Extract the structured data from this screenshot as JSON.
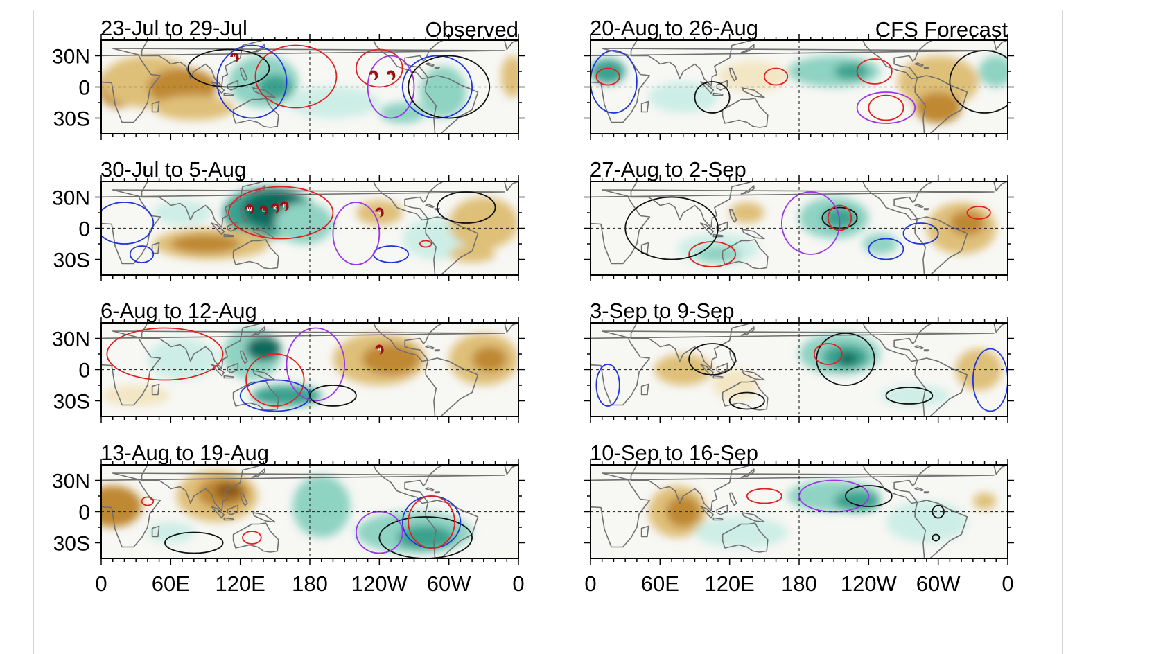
{
  "figure": {
    "left_tag": "Observed",
    "right_tag": "CFS Forecast",
    "lat_labels": [
      "30N",
      "0",
      "30S"
    ],
    "lon_labels": [
      "0",
      "60E",
      "120E",
      "180",
      "120W",
      "60W",
      "0"
    ],
    "colors": {
      "dry_dark": "#8c5a1c",
      "dry_mid": "#bf8833",
      "dry_light": "#dfc079",
      "dry_pale": "#f3e6c4",
      "wet_pale": "#cdeee6",
      "wet_light": "#8fd3c3",
      "wet_mid": "#3aa28f",
      "wet_dark": "#0e6a5c",
      "wet_deep": "#053f36",
      "contour_red": "#e02020",
      "contour_blue": "#1f35d8",
      "contour_black": "#111111",
      "contour_purple": "#9b35e6",
      "coast": "#707070"
    }
  },
  "panels": [
    {
      "title": "23-Jul to 29-Jul",
      "storms": [
        "N",
        "E",
        "F"
      ],
      "shading": [
        {
          "lon": 15,
          "lat": 0,
          "rx": 18,
          "ry": 20,
          "c": "dry_mid"
        },
        {
          "lon": 40,
          "lat": 5,
          "rx": 40,
          "ry": 25,
          "c": "dry_light"
        },
        {
          "lon": 70,
          "lat": 0,
          "rx": 30,
          "ry": 18,
          "c": "dry_mid"
        },
        {
          "lon": 80,
          "lat": -20,
          "rx": 35,
          "ry": 12,
          "c": "dry_light"
        },
        {
          "lon": 140,
          "lat": 5,
          "rx": 30,
          "ry": 25,
          "c": "wet_light"
        },
        {
          "lon": 150,
          "lat": 0,
          "rx": 15,
          "ry": 12,
          "c": "wet_mid"
        },
        {
          "lon": 200,
          "lat": -15,
          "rx": 40,
          "ry": 15,
          "c": "wet_pale"
        },
        {
          "lon": 260,
          "lat": -25,
          "rx": 20,
          "ry": 10,
          "c": "wet_light"
        },
        {
          "lon": 295,
          "lat": -5,
          "rx": 20,
          "ry": 25,
          "c": "wet_light"
        },
        {
          "lon": 355,
          "lat": 10,
          "rx": 10,
          "ry": 20,
          "c": "dry_light"
        }
      ],
      "contours": [
        {
          "lon": 110,
          "lat": 18,
          "rx": 35,
          "ry": 18,
          "c": "contour_black"
        },
        {
          "lon": 130,
          "lat": 5,
          "rx": 30,
          "ry": 35,
          "c": "contour_blue"
        },
        {
          "lon": 168,
          "lat": 10,
          "rx": 35,
          "ry": 30,
          "c": "contour_red"
        },
        {
          "lon": 240,
          "lat": 18,
          "rx": 20,
          "ry": 18,
          "c": "contour_red"
        },
        {
          "lon": 290,
          "lat": 0,
          "rx": 30,
          "ry": 30,
          "c": "contour_blue"
        },
        {
          "lon": 300,
          "lat": 0,
          "rx": 35,
          "ry": 30,
          "c": "contour_black"
        },
        {
          "lon": 250,
          "lat": 0,
          "rx": 20,
          "ry": 30,
          "c": "contour_purple"
        }
      ]
    },
    {
      "title": "30-Jul to 5-Aug",
      "storms": [
        "W",
        "L",
        "K",
        "F",
        "G"
      ],
      "shading": [
        {
          "lon": 145,
          "lat": 15,
          "rx": 40,
          "ry": 25,
          "c": "wet_mid"
        },
        {
          "lon": 150,
          "lat": 18,
          "rx": 28,
          "ry": 18,
          "c": "wet_dark"
        },
        {
          "lon": 175,
          "lat": 5,
          "rx": 25,
          "ry": 20,
          "c": "wet_light"
        },
        {
          "lon": 95,
          "lat": -15,
          "rx": 50,
          "ry": 15,
          "c": "dry_light"
        },
        {
          "lon": 90,
          "lat": -15,
          "rx": 30,
          "ry": 9,
          "c": "dry_mid"
        },
        {
          "lon": 70,
          "lat": 15,
          "rx": 25,
          "ry": 12,
          "c": "wet_pale"
        },
        {
          "lon": 240,
          "lat": 15,
          "rx": 20,
          "ry": 12,
          "c": "dry_light"
        },
        {
          "lon": 290,
          "lat": -10,
          "rx": 30,
          "ry": 20,
          "c": "wet_pale"
        },
        {
          "lon": 330,
          "lat": 5,
          "rx": 30,
          "ry": 25,
          "c": "dry_light"
        },
        {
          "lon": 320,
          "lat": -25,
          "rx": 20,
          "ry": 8,
          "c": "dry_light"
        }
      ],
      "contours": [
        {
          "lon": 155,
          "lat": 15,
          "rx": 45,
          "ry": 25,
          "c": "contour_red"
        },
        {
          "lon": 20,
          "lat": 5,
          "rx": 25,
          "ry": 20,
          "c": "contour_blue"
        },
        {
          "lon": 35,
          "lat": -25,
          "rx": 10,
          "ry": 8,
          "c": "contour_blue"
        },
        {
          "lon": 250,
          "lat": -25,
          "rx": 15,
          "ry": 8,
          "c": "contour_blue"
        },
        {
          "lon": 220,
          "lat": -5,
          "rx": 20,
          "ry": 30,
          "c": "contour_purple"
        },
        {
          "lon": 315,
          "lat": 20,
          "rx": 25,
          "ry": 15,
          "c": "contour_black"
        },
        {
          "lon": 280,
          "lat": -15,
          "rx": 5,
          "ry": 3,
          "c": "contour_red"
        }
      ]
    },
    {
      "title": "6-Aug to 12-Aug",
      "storms": [
        "H"
      ],
      "shading": [
        {
          "lon": 130,
          "lat": 15,
          "rx": 25,
          "ry": 25,
          "c": "wet_light"
        },
        {
          "lon": 140,
          "lat": 20,
          "rx": 15,
          "ry": 12,
          "c": "wet_dark"
        },
        {
          "lon": 160,
          "lat": -25,
          "rx": 30,
          "ry": 10,
          "c": "wet_mid"
        },
        {
          "lon": 70,
          "lat": 10,
          "rx": 30,
          "ry": 20,
          "c": "wet_pale"
        },
        {
          "lon": 240,
          "lat": 10,
          "rx": 40,
          "ry": 25,
          "c": "dry_light"
        },
        {
          "lon": 250,
          "lat": 10,
          "rx": 25,
          "ry": 15,
          "c": "dry_mid"
        },
        {
          "lon": 330,
          "lat": 10,
          "rx": 30,
          "ry": 25,
          "c": "dry_light"
        },
        {
          "lon": 335,
          "lat": 10,
          "rx": 15,
          "ry": 12,
          "c": "dry_mid"
        },
        {
          "lon": 30,
          "lat": -25,
          "rx": 30,
          "ry": 10,
          "c": "dry_pale"
        }
      ],
      "contours": [
        {
          "lon": 55,
          "lat": 15,
          "rx": 50,
          "ry": 25,
          "c": "contour_red"
        },
        {
          "lon": 150,
          "lat": -25,
          "rx": 30,
          "ry": 15,
          "c": "contour_blue"
        },
        {
          "lon": 150,
          "lat": -10,
          "rx": 25,
          "ry": 25,
          "c": "contour_red"
        },
        {
          "lon": 185,
          "lat": 5,
          "rx": 25,
          "ry": 35,
          "c": "contour_purple"
        },
        {
          "lon": 200,
          "lat": -25,
          "rx": 20,
          "ry": 10,
          "c": "contour_black"
        }
      ]
    },
    {
      "title": "13-Aug to 19-Aug",
      "storms": [],
      "shading": [
        {
          "lon": 10,
          "lat": 5,
          "rx": 25,
          "ry": 20,
          "c": "dry_mid"
        },
        {
          "lon": 100,
          "lat": 15,
          "rx": 35,
          "ry": 25,
          "c": "dry_light"
        },
        {
          "lon": 105,
          "lat": 18,
          "rx": 22,
          "ry": 15,
          "c": "dry_mid"
        },
        {
          "lon": 110,
          "lat": 20,
          "rx": 12,
          "ry": 8,
          "c": "dry_dark"
        },
        {
          "lon": 190,
          "lat": 5,
          "rx": 25,
          "ry": 30,
          "c": "wet_light"
        },
        {
          "lon": 270,
          "lat": -20,
          "rx": 50,
          "ry": 20,
          "c": "wet_light"
        },
        {
          "lon": 280,
          "lat": -25,
          "rx": 25,
          "ry": 12,
          "c": "wet_mid"
        },
        {
          "lon": 60,
          "lat": -20,
          "rx": 20,
          "ry": 10,
          "c": "wet_pale"
        }
      ],
      "contours": [
        {
          "lon": 40,
          "lat": 10,
          "rx": 5,
          "ry": 4,
          "c": "contour_red"
        },
        {
          "lon": 80,
          "lat": -30,
          "rx": 25,
          "ry": 10,
          "c": "contour_black"
        },
        {
          "lon": 130,
          "lat": -25,
          "rx": 8,
          "ry": 6,
          "c": "contour_red"
        },
        {
          "lon": 280,
          "lat": -25,
          "rx": 40,
          "ry": 20,
          "c": "contour_black"
        },
        {
          "lon": 285,
          "lat": -10,
          "rx": 25,
          "ry": 25,
          "c": "contour_blue"
        },
        {
          "lon": 285,
          "lat": -10,
          "rx": 20,
          "ry": 25,
          "c": "contour_red"
        },
        {
          "lon": 240,
          "lat": -20,
          "rx": 20,
          "ry": 20,
          "c": "contour_purple"
        }
      ]
    },
    {
      "title": "20-Aug to 26-Aug",
      "storms": [],
      "shading": [
        {
          "lon": 15,
          "lat": 15,
          "rx": 15,
          "ry": 12,
          "c": "wet_mid"
        },
        {
          "lon": 80,
          "lat": -10,
          "rx": 30,
          "ry": 15,
          "c": "wet_pale"
        },
        {
          "lon": 210,
          "lat": 15,
          "rx": 40,
          "ry": 15,
          "c": "wet_light"
        },
        {
          "lon": 225,
          "lat": 15,
          "rx": 15,
          "ry": 8,
          "c": "wet_mid"
        },
        {
          "lon": 300,
          "lat": 5,
          "rx": 35,
          "ry": 25,
          "c": "dry_light"
        },
        {
          "lon": 300,
          "lat": -20,
          "rx": 20,
          "ry": 15,
          "c": "dry_mid"
        },
        {
          "lon": 140,
          "lat": 10,
          "rx": 30,
          "ry": 15,
          "c": "dry_pale"
        },
        {
          "lon": 350,
          "lat": 15,
          "rx": 15,
          "ry": 15,
          "c": "wet_light"
        }
      ],
      "contours": [
        {
          "lon": 15,
          "lat": 10,
          "rx": 10,
          "ry": 8,
          "c": "contour_red"
        },
        {
          "lon": 20,
          "lat": 5,
          "rx": 20,
          "ry": 30,
          "c": "contour_blue"
        },
        {
          "lon": 105,
          "lat": -10,
          "rx": 15,
          "ry": 15,
          "c": "contour_black"
        },
        {
          "lon": 160,
          "lat": 10,
          "rx": 10,
          "ry": 8,
          "c": "contour_red"
        },
        {
          "lon": 245,
          "lat": 15,
          "rx": 15,
          "ry": 12,
          "c": "contour_red"
        },
        {
          "lon": 255,
          "lat": -20,
          "rx": 15,
          "ry": 12,
          "c": "contour_red"
        },
        {
          "lon": 255,
          "lat": -20,
          "rx": 25,
          "ry": 15,
          "c": "contour_purple"
        },
        {
          "lon": 340,
          "lat": 5,
          "rx": 30,
          "ry": 30,
          "c": "contour_black"
        }
      ]
    },
    {
      "title": "27-Aug to 2-Sep",
      "storms": [],
      "shading": [
        {
          "lon": 210,
          "lat": 10,
          "rx": 30,
          "ry": 20,
          "c": "wet_light"
        },
        {
          "lon": 215,
          "lat": 10,
          "rx": 15,
          "ry": 10,
          "c": "wet_mid"
        },
        {
          "lon": 110,
          "lat": -20,
          "rx": 35,
          "ry": 15,
          "c": "wet_pale"
        },
        {
          "lon": 110,
          "lat": -25,
          "rx": 20,
          "ry": 8,
          "c": "wet_light"
        },
        {
          "lon": 320,
          "lat": 0,
          "rx": 30,
          "ry": 25,
          "c": "dry_light"
        },
        {
          "lon": 325,
          "lat": 5,
          "rx": 15,
          "ry": 12,
          "c": "dry_mid"
        },
        {
          "lon": 135,
          "lat": 15,
          "rx": 15,
          "ry": 10,
          "c": "dry_light"
        },
        {
          "lon": 250,
          "lat": -15,
          "rx": 15,
          "ry": 10,
          "c": "wet_light"
        }
      ],
      "contours": [
        {
          "lon": 215,
          "lat": 10,
          "rx": 15,
          "ry": 10,
          "c": "contour_black"
        },
        {
          "lon": 215,
          "lat": 10,
          "rx": 10,
          "ry": 12,
          "c": "contour_red"
        },
        {
          "lon": 105,
          "lat": -25,
          "rx": 20,
          "ry": 12,
          "c": "contour_red"
        },
        {
          "lon": 255,
          "lat": -20,
          "rx": 15,
          "ry": 10,
          "c": "contour_blue"
        },
        {
          "lon": 285,
          "lat": -5,
          "rx": 15,
          "ry": 10,
          "c": "contour_blue"
        },
        {
          "lon": 335,
          "lat": 15,
          "rx": 10,
          "ry": 6,
          "c": "contour_red"
        },
        {
          "lon": 190,
          "lat": 5,
          "rx": 25,
          "ry": 30,
          "c": "contour_purple"
        },
        {
          "lon": 70,
          "lat": 0,
          "rx": 40,
          "ry": 30,
          "c": "contour_black"
        }
      ]
    },
    {
      "title": "3-Sep to 9-Sep",
      "storms": [],
      "shading": [
        {
          "lon": 215,
          "lat": 15,
          "rx": 35,
          "ry": 20,
          "c": "wet_light"
        },
        {
          "lon": 220,
          "lat": 12,
          "rx": 20,
          "ry": 12,
          "c": "wet_mid"
        },
        {
          "lon": 222,
          "lat": 10,
          "rx": 8,
          "ry": 6,
          "c": "wet_dark"
        },
        {
          "lon": 80,
          "lat": 0,
          "rx": 25,
          "ry": 15,
          "c": "dry_light"
        },
        {
          "lon": 125,
          "lat": -15,
          "rx": 20,
          "ry": 15,
          "c": "dry_pale"
        },
        {
          "lon": 335,
          "lat": 0,
          "rx": 20,
          "ry": 20,
          "c": "dry_light"
        },
        {
          "lon": 280,
          "lat": -25,
          "rx": 30,
          "ry": 10,
          "c": "wet_pale"
        }
      ],
      "contours": [
        {
          "lon": 220,
          "lat": 10,
          "rx": 25,
          "ry": 25,
          "c": "contour_black"
        },
        {
          "lon": 205,
          "lat": 15,
          "rx": 12,
          "ry": 10,
          "c": "contour_red"
        },
        {
          "lon": 105,
          "lat": 10,
          "rx": 20,
          "ry": 15,
          "c": "contour_black"
        },
        {
          "lon": 135,
          "lat": -30,
          "rx": 15,
          "ry": 8,
          "c": "contour_black"
        },
        {
          "lon": 275,
          "lat": -25,
          "rx": 20,
          "ry": 8,
          "c": "contour_black"
        },
        {
          "lon": 345,
          "lat": -10,
          "rx": 15,
          "ry": 30,
          "c": "contour_blue"
        },
        {
          "lon": 15,
          "lat": -15,
          "rx": 10,
          "ry": 20,
          "c": "contour_blue"
        }
      ]
    },
    {
      "title": "10-Sep to 16-Sep",
      "storms": [],
      "shading": [
        {
          "lon": 75,
          "lat": 0,
          "rx": 25,
          "ry": 25,
          "c": "dry_light"
        },
        {
          "lon": 80,
          "lat": 0,
          "rx": 15,
          "ry": 15,
          "c": "dry_mid"
        },
        {
          "lon": 210,
          "lat": 15,
          "rx": 40,
          "ry": 15,
          "c": "wet_light"
        },
        {
          "lon": 230,
          "lat": 10,
          "rx": 20,
          "ry": 10,
          "c": "wet_mid"
        },
        {
          "lon": 130,
          "lat": -20,
          "rx": 40,
          "ry": 15,
          "c": "wet_pale"
        },
        {
          "lon": 290,
          "lat": -10,
          "rx": 35,
          "ry": 20,
          "c": "wet_pale"
        },
        {
          "lon": 340,
          "lat": 10,
          "rx": 10,
          "ry": 8,
          "c": "dry_light"
        }
      ],
      "contours": [
        {
          "lon": 150,
          "lat": 15,
          "rx": 15,
          "ry": 7,
          "c": "contour_red"
        },
        {
          "lon": 210,
          "lat": 15,
          "rx": 30,
          "ry": 15,
          "c": "contour_purple"
        },
        {
          "lon": 240,
          "lat": 15,
          "rx": 20,
          "ry": 10,
          "c": "contour_black"
        },
        {
          "lon": 300,
          "lat": 0,
          "rx": 5,
          "ry": 6,
          "c": "contour_black"
        },
        {
          "lon": 298,
          "lat": -25,
          "rx": 3,
          "ry": 3,
          "c": "contour_black"
        }
      ]
    }
  ]
}
